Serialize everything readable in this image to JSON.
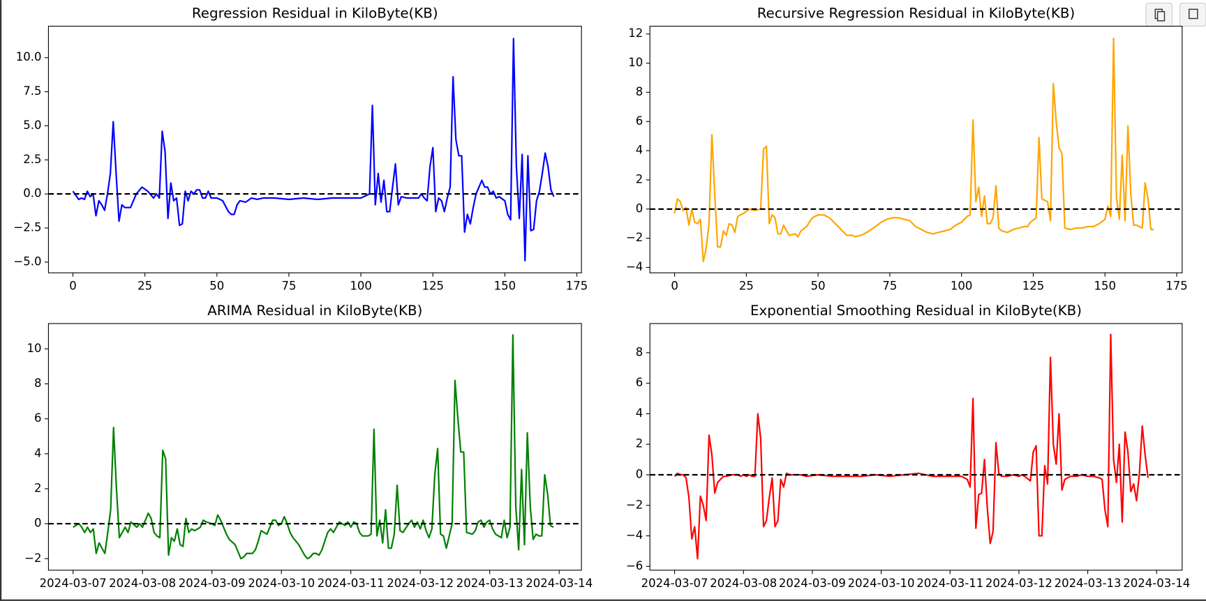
{
  "chart_data": [
    {
      "type": "line",
      "title": "Regression Residual in KiloByte(KB)",
      "color": "#0000ff",
      "x": [
        0,
        2,
        3,
        4,
        5,
        6,
        7,
        8,
        9,
        10,
        11,
        12,
        13,
        14,
        15,
        16,
        17,
        18,
        20,
        22,
        24,
        26,
        28,
        29,
        30,
        31,
        32,
        33,
        34,
        35,
        36,
        37,
        38,
        39,
        40,
        41,
        42,
        43,
        44,
        45,
        46,
        47,
        48,
        50,
        52,
        54,
        55,
        56,
        57,
        58,
        60,
        62,
        64,
        66,
        70,
        75,
        80,
        85,
        90,
        95,
        100,
        102,
        103,
        104,
        105,
        106,
        107,
        108,
        109,
        110,
        111,
        112,
        113,
        114,
        116,
        120,
        121,
        122,
        123,
        124,
        125,
        126,
        127,
        128,
        129,
        130,
        131,
        132,
        133,
        134,
        135,
        136,
        137,
        138,
        139,
        140,
        141,
        142,
        143,
        144,
        145,
        146,
        147,
        148,
        150,
        151,
        152,
        153,
        154,
        155,
        156,
        157,
        158,
        159,
        160,
        161,
        162,
        163,
        164,
        165,
        166,
        167
      ],
      "values": [
        0.2,
        -0.4,
        -0.3,
        -0.4,
        0.2,
        -0.2,
        0,
        -1.6,
        -0.5,
        -0.8,
        -1.2,
        0,
        1.5,
        5.3,
        1.5,
        -2.0,
        -0.8,
        -1,
        -1,
        0,
        0.5,
        0.2,
        -0.3,
        0,
        -0.3,
        4.6,
        3.1,
        -1.8,
        0.8,
        -0.5,
        -0.3,
        -2.3,
        -2.2,
        0.2,
        -0.5,
        0.2,
        0,
        0.3,
        0.3,
        -0.3,
        -0.3,
        0.2,
        -0.3,
        -0.3,
        -0.5,
        -1.3,
        -1.5,
        -1.5,
        -0.8,
        -0.5,
        -0.6,
        -0.3,
        -0.4,
        -0.3,
        -0.3,
        -0.4,
        -0.3,
        -0.4,
        -0.3,
        -0.3,
        -0.3,
        -0.1,
        0,
        6.5,
        -0.8,
        1.5,
        -0.6,
        1,
        -1.3,
        -1.3,
        0.5,
        2.2,
        -0.8,
        -0.2,
        -0.3,
        -0.3,
        0,
        -0.3,
        -0.5,
        2,
        3.4,
        -1.3,
        -0.3,
        -0.5,
        -1.3,
        -0.3,
        0.5,
        8.6,
        4,
        2.8,
        2.8,
        -2.8,
        -1.5,
        -2.2,
        -1,
        0,
        0.5,
        1,
        0.5,
        0.5,
        0,
        0.2,
        -0.3,
        -0.2,
        -0.5,
        -1.5,
        -1.9,
        11.4,
        2,
        -1.8,
        2.9,
        -4.9,
        2.8,
        -2.7,
        -2.6,
        -0.5,
        0.2,
        1.5,
        3,
        2,
        0.3,
        -0.2
      ],
      "xlim": [
        -8.5,
        176.6
      ],
      "ylim": [
        -5.79,
        12.31
      ],
      "xticks": [
        0,
        25,
        50,
        75,
        100,
        125,
        150,
        175
      ],
      "yticks": [
        {
          "value": -5,
          "label": "−5.0"
        },
        {
          "value": -2.5,
          "label": "−2.5"
        },
        {
          "value": 0,
          "label": "0.0"
        },
        {
          "value": 2.5,
          "label": "2.5"
        },
        {
          "value": 5,
          "label": "5.0"
        },
        {
          "value": 7.5,
          "label": "7.5"
        },
        {
          "value": 10,
          "label": "10.0"
        }
      ],
      "reference_line": {
        "value": 0,
        "style": "dashed",
        "color": "#000000"
      }
    },
    {
      "type": "line",
      "title": "Recursive Regression Residual in KiloByte(KB)",
      "color": "#ffa500",
      "x": [
        0,
        1,
        2,
        3,
        4,
        5,
        6,
        7,
        8,
        9,
        10,
        11,
        12,
        13,
        14,
        15,
        16,
        17,
        18,
        19,
        20,
        21,
        22,
        24,
        26,
        28,
        30,
        31,
        32,
        33,
        34,
        35,
        36,
        37,
        38,
        39,
        40,
        42,
        43,
        44,
        46,
        48,
        50,
        52,
        54,
        56,
        58,
        60,
        62,
        63,
        65,
        67,
        70,
        72,
        74,
        76,
        78,
        80,
        82,
        84,
        86,
        88,
        90,
        92,
        94,
        96,
        98,
        100,
        102,
        103,
        104,
        105,
        106,
        107,
        108,
        109,
        110,
        111,
        112,
        113,
        114,
        116,
        118,
        120,
        122,
        123,
        124,
        126,
        127,
        128,
        129,
        130,
        131,
        132,
        133,
        134,
        135,
        136,
        138,
        140,
        142,
        144,
        146,
        148,
        150,
        151,
        152,
        153,
        154,
        155,
        156,
        157,
        158,
        159,
        160,
        161,
        162,
        163,
        164,
        165,
        166,
        167
      ],
      "values": [
        -0.3,
        0.7,
        0.5,
        -0.1,
        0.1,
        -1.1,
        0,
        -0.9,
        -1,
        -0.7,
        -3.6,
        -2.7,
        -1,
        5.1,
        1,
        -2.6,
        -2.6,
        -1.5,
        -1.8,
        -1,
        -1.1,
        -1.6,
        -0.5,
        -0.3,
        0,
        -0.1,
        0,
        4.1,
        4.3,
        -1,
        -0.4,
        -0.6,
        -1.7,
        -1.7,
        -1.1,
        -1.5,
        -1.8,
        -1.7,
        -1.9,
        -1.5,
        -1.2,
        -0.6,
        -0.4,
        -0.4,
        -0.6,
        -1,
        -1.4,
        -1.8,
        -1.8,
        -1.9,
        -1.8,
        -1.6,
        -1.2,
        -0.9,
        -0.7,
        -0.6,
        -0.6,
        -0.7,
        -0.8,
        -1.2,
        -1.4,
        -1.6,
        -1.7,
        -1.6,
        -1.5,
        -1.4,
        -1.1,
        -0.9,
        -0.5,
        -0.4,
        6.1,
        0.5,
        1.5,
        -0.5,
        0.9,
        -1,
        -1,
        -0.6,
        1.6,
        -1.3,
        -1.5,
        -1.6,
        -1.4,
        -1.3,
        -1.2,
        -1.2,
        -0.9,
        -0.6,
        4.9,
        0.7,
        0.6,
        0.5,
        -0.8,
        8.6,
        6,
        4.2,
        3.8,
        -1.3,
        -1.4,
        -1.3,
        -1.3,
        -1.2,
        -1.2,
        -1,
        -0.7,
        0.2,
        -0.5,
        11.7,
        0.8,
        -0.7,
        3.7,
        -0.8,
        5.7,
        1,
        -1.1,
        -1.1,
        -1.2,
        -1.3,
        1.8,
        0.7,
        -1.4,
        -1.4
      ],
      "xlim": [
        -8.6,
        176.9
      ],
      "ylim": [
        -4.37,
        12.53
      ],
      "xticks": [
        0,
        25,
        50,
        75,
        100,
        125,
        150,
        175
      ],
      "yticks": [
        {
          "value": -4,
          "label": "−4"
        },
        {
          "value": -2,
          "label": "−2"
        },
        0,
        2,
        4,
        6,
        8,
        10,
        12
      ],
      "reference_line": {
        "value": 0,
        "style": "dashed",
        "color": "#000000"
      }
    },
    {
      "type": "line",
      "title": "ARIMA Residual in KiloByte(KB)",
      "color": "#008000",
      "x": [
        0,
        2,
        3,
        4,
        5,
        6,
        7,
        8,
        9,
        10,
        11,
        12,
        13,
        14,
        15,
        16,
        17,
        18,
        19,
        20,
        22,
        23,
        24,
        25,
        26,
        27,
        28,
        29,
        30,
        31,
        32,
        33,
        34,
        35,
        36,
        37,
        38,
        39,
        40,
        41,
        42,
        44,
        45,
        46,
        48,
        49,
        50,
        51,
        53,
        54,
        56,
        57,
        58,
        59,
        60,
        62,
        63,
        64,
        65,
        67,
        68,
        69,
        70,
        71,
        72,
        73,
        74,
        75,
        76,
        77,
        78,
        79,
        80,
        81,
        82,
        83,
        84,
        85,
        86,
        87,
        88,
        89,
        90,
        91,
        92,
        93,
        94,
        95,
        96,
        97,
        98,
        99,
        100,
        102,
        103,
        104,
        105,
        106,
        107,
        108,
        109,
        110,
        111,
        112,
        113,
        114,
        116,
        117,
        118,
        119,
        120,
        121,
        122,
        123,
        124,
        125,
        126,
        127,
        128,
        129,
        131,
        132,
        133,
        134,
        135,
        136,
        138,
        139,
        140,
        141,
        142,
        143,
        144,
        145,
        146,
        147,
        148,
        149,
        150,
        151,
        152,
        153,
        154,
        155,
        156,
        157,
        158,
        159,
        160,
        161,
        162,
        163,
        164,
        165,
        166
      ],
      "values": [
        -0.2,
        0,
        -0.2,
        -0.5,
        -0.2,
        -0.5,
        -0.3,
        -1.7,
        -1.1,
        -1.4,
        -1.7,
        -0.5,
        0.8,
        5.5,
        2,
        -0.8,
        -0.5,
        -0.2,
        -0.5,
        0.1,
        -0.2,
        0,
        -0.2,
        0.2,
        0.6,
        0.3,
        -0.5,
        -0.7,
        -0.8,
        4.2,
        3.7,
        -1.8,
        -0.8,
        -1,
        -0.3,
        -1.2,
        -1.3,
        0.3,
        -0.5,
        -0.3,
        -0.4,
        -0.2,
        0.2,
        0.1,
        0,
        -0.1,
        0.5,
        0.2,
        -0.6,
        -0.9,
        -1.2,
        -1.6,
        -2,
        -1.9,
        -1.7,
        -1.7,
        -1.5,
        -1,
        -0.4,
        -0.6,
        -0.2,
        0.2,
        0.2,
        -0.1,
        0,
        0.4,
        0,
        -0.5,
        -0.8,
        -1,
        -1.2,
        -1.5,
        -1.8,
        -2,
        -1.9,
        -1.7,
        -1.7,
        -1.8,
        -1.5,
        -1,
        -0.5,
        -0.3,
        -0.5,
        -0.2,
        0.1,
        0,
        -0.1,
        0.1,
        -0.2,
        0.1,
        0,
        -0.5,
        -0.7,
        -0.7,
        -0.6,
        5.4,
        -0.7,
        0.2,
        -1.1,
        0.8,
        -1.4,
        -1.4,
        -0.6,
        2.2,
        -0.4,
        -0.5,
        0,
        0.2,
        -0.2,
        0.1,
        -0.3,
        0.2,
        -0.4,
        -0.8,
        -0.3,
        2.8,
        4.3,
        -0.6,
        -0.7,
        -1.4,
        0,
        8.2,
        6,
        4.1,
        4.1,
        -0.5,
        -0.6,
        -0.4,
        0.1,
        0.2,
        -0.2,
        0.1,
        0.2,
        -0.3,
        -0.6,
        -0.7,
        -0.8,
        0.2,
        -0.8,
        -0.2,
        10.8,
        1,
        -1.5,
        3.1,
        -1.2,
        5.2,
        1,
        -0.9,
        -0.6,
        -0.7,
        -0.7,
        2.8,
        1.7,
        -0.1,
        -0.2
      ],
      "xlim": [
        -8.5,
        175.7
      ],
      "ylim": [
        -2.66,
        11.45
      ],
      "xticks": [
        {
          "value": 0,
          "label": "2024-03-07"
        },
        {
          "value": 24,
          "label": "2024-03-08"
        },
        {
          "value": 48,
          "label": "2024-03-09"
        },
        {
          "value": 72,
          "label": "2024-03-10"
        },
        {
          "value": 96,
          "label": "2024-03-11"
        },
        {
          "value": 120,
          "label": "2024-03-12"
        },
        {
          "value": 144,
          "label": "2024-03-13"
        },
        {
          "value": 168,
          "label": "2024-03-14"
        }
      ],
      "yticks": [
        {
          "value": -2,
          "label": "−2"
        },
        0,
        2,
        4,
        6,
        8,
        10
      ],
      "reference_line": {
        "value": 0,
        "style": "dashed",
        "color": "#000000"
      }
    },
    {
      "type": "line",
      "title": "Exponential Smoothing Residual in KiloByte(KB)",
      "color": "#ff0000",
      "x": [
        0,
        1,
        2,
        3,
        4,
        5,
        6,
        7,
        8,
        9,
        10,
        11,
        12,
        13,
        14,
        15,
        16,
        17,
        18,
        20,
        22,
        23,
        24,
        25,
        26,
        27,
        28,
        29,
        30,
        31,
        32,
        33,
        34,
        35,
        36,
        37,
        38,
        39,
        40,
        44,
        46,
        50,
        55,
        60,
        65,
        70,
        75,
        80,
        85,
        90,
        95,
        100,
        102,
        103,
        104,
        105,
        106,
        107,
        108,
        109,
        110,
        111,
        112,
        113,
        114,
        116,
        118,
        120,
        121,
        122,
        124,
        125,
        126,
        127,
        128,
        129,
        130,
        131,
        132,
        133,
        134,
        135,
        136,
        138,
        140,
        142,
        144,
        146,
        148,
        149,
        150,
        151,
        152,
        153,
        154,
        155,
        156,
        157,
        158,
        159,
        160,
        161,
        162,
        163,
        164,
        165
      ],
      "values": [
        -0.1,
        0.1,
        0,
        0,
        -0.2,
        -1.5,
        -4.2,
        -3.4,
        -5.5,
        -1.4,
        -2,
        -3,
        2.6,
        1.3,
        -1.2,
        -0.5,
        -0.3,
        -0.1,
        -0.1,
        0,
        0,
        -0.1,
        0,
        -0.1,
        0,
        -0.1,
        -0.1,
        4,
        2.4,
        -3.4,
        -3,
        -1.5,
        -0.2,
        -3.4,
        -3,
        -0.3,
        -0.8,
        0.1,
        0,
        0,
        -0.1,
        0,
        -0.1,
        -0.1,
        -0.1,
        0,
        -0.1,
        0,
        0.1,
        -0.1,
        -0.1,
        -0.1,
        -0.3,
        -0.8,
        5,
        -3.5,
        -1.3,
        -1.2,
        1,
        -2.2,
        -4.5,
        -3.7,
        2.1,
        0.1,
        -0.1,
        -0.1,
        0,
        -0.1,
        0,
        -0.1,
        -0.4,
        1.5,
        1.9,
        -4,
        -4,
        0.6,
        -0.6,
        7.7,
        2,
        0.7,
        4,
        -1,
        -0.3,
        -0.1,
        -0.1,
        0,
        -0.1,
        -0.1,
        -0.2,
        -0.3,
        -2.3,
        -3.4,
        9.2,
        1,
        -0.5,
        2,
        -3.1,
        2.8,
        1.5,
        -1.1,
        -0.6,
        -1.7,
        0.1,
        3.2,
        1.3,
        -0.2
      ],
      "xlim": [
        -8.6,
        176.9
      ],
      "ylim": [
        -6.25,
        9.91
      ],
      "xticks": [
        {
          "value": 0,
          "label": "2024-03-07"
        },
        {
          "value": 24,
          "label": "2024-03-08"
        },
        {
          "value": 48,
          "label": "2024-03-09"
        },
        {
          "value": 72,
          "label": "2024-03-10"
        },
        {
          "value": 96,
          "label": "2024-03-11"
        },
        {
          "value": 120,
          "label": "2024-03-12"
        },
        {
          "value": 144,
          "label": "2024-03-13"
        },
        {
          "value": 168,
          "label": "2024-03-14"
        }
      ],
      "yticks": [
        {
          "value": -6,
          "label": "−6"
        },
        {
          "value": -4,
          "label": "−4"
        },
        {
          "value": -2,
          "label": "−2"
        },
        0,
        2,
        4,
        6,
        8
      ],
      "reference_line": {
        "value": 0,
        "style": "dashed",
        "color": "#000000"
      }
    }
  ]
}
